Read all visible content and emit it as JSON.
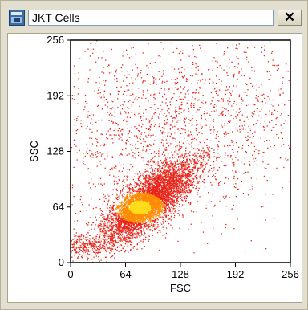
{
  "window": {
    "title": "JKT Cells",
    "close_label": "✕"
  },
  "colors": {
    "dot_low": "#e8261b",
    "dot_mid": "#ff8a00",
    "dot_high": "#ffdc18",
    "frame": "#000000"
  },
  "chart_data": {
    "type": "scatter",
    "title": "",
    "xlabel": "FSC",
    "ylabel": "SSC",
    "xlim": [
      0,
      256
    ],
    "ylim": [
      0,
      256
    ],
    "xticks": [
      0,
      64,
      128,
      192,
      256
    ],
    "yticks": [
      0,
      64,
      128,
      192,
      256
    ],
    "grid": false,
    "legend": "none",
    "series": [
      {
        "clusters": [
          {
            "center_x": 90,
            "center_y": 70,
            "spread_major": 34,
            "spread_minor": 12,
            "angle_deg": 40,
            "count": 5200
          },
          {
            "center_x": 78,
            "center_y": 62,
            "spread_major": 12,
            "spread_minor": 6,
            "angle_deg": 40,
            "count": 1100
          },
          {
            "center_x": 100,
            "center_y": 150,
            "spread_major": 70,
            "spread_minor": 55,
            "angle_deg": 0,
            "count": 1600
          },
          {
            "center_x": 6,
            "center_y": 20,
            "spread_major": 6,
            "spread_minor": 20,
            "angle_deg": 90,
            "count": 350
          },
          {
            "center_x": 200,
            "center_y": 170,
            "spread_major": 45,
            "spread_minor": 45,
            "angle_deg": 0,
            "count": 350
          }
        ]
      }
    ]
  }
}
